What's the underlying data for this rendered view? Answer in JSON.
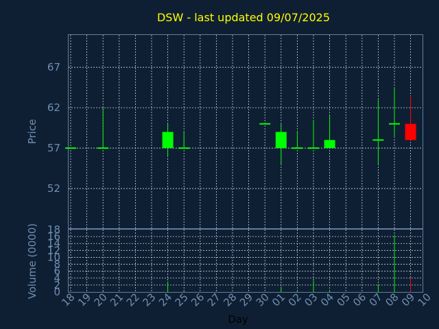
{
  "chart_data": {
    "type": "candlestick",
    "title": "DSW - last updated 09/07/2025",
    "xlabel": "Day",
    "price_panel": {
      "ylabel": "Price",
      "yticks": [
        52,
        57,
        62,
        67
      ],
      "ylim": [
        47,
        71
      ],
      "grid": true
    },
    "volume_panel": {
      "ylabel": "Volume (0000)",
      "yticks": [
        0,
        2,
        4,
        6,
        8,
        10,
        12,
        14,
        16,
        18
      ],
      "ylim": [
        0,
        18
      ],
      "grid": true
    },
    "x_ticks": [
      "18",
      "19",
      "20",
      "21",
      "22",
      "23",
      "24",
      "25",
      "26",
      "27",
      "28",
      "29",
      "30",
      "01",
      "02",
      "03",
      "04",
      "05",
      "06",
      "07",
      "08",
      "09",
      "10"
    ],
    "candles": [
      {
        "day": "18",
        "open": 57.0,
        "high": 57.0,
        "low": 57.0,
        "close": 57.0,
        "volume": 0.0
      },
      {
        "day": "20",
        "open": 57.0,
        "high": 62.0,
        "low": 57.0,
        "close": 57.0,
        "volume": 0.2
      },
      {
        "day": "24",
        "open": 57.0,
        "high": 60.0,
        "low": 56.0,
        "close": 59.0,
        "volume": 3.0
      },
      {
        "day": "25",
        "open": 57.0,
        "high": 59.0,
        "low": 57.0,
        "close": 57.0,
        "volume": 0.3
      },
      {
        "day": "30",
        "open": 60.0,
        "high": 60.0,
        "low": 60.0,
        "close": 60.0,
        "volume": 0.0
      },
      {
        "day": "01",
        "open": 57.0,
        "high": 60.0,
        "low": 55.0,
        "close": 59.0,
        "volume": 1.5
      },
      {
        "day": "02",
        "open": 57.0,
        "high": 59.0,
        "low": 57.0,
        "close": 57.0,
        "volume": 0.3
      },
      {
        "day": "03",
        "open": 57.0,
        "high": 60.5,
        "low": 57.0,
        "close": 57.0,
        "volume": 3.3
      },
      {
        "day": "04",
        "open": 57.0,
        "high": 61.0,
        "low": 57.0,
        "close": 58.0,
        "volume": 0.6
      },
      {
        "day": "07",
        "open": 58.0,
        "high": 63.0,
        "low": 55.0,
        "close": 58.0,
        "volume": 2.2
      },
      {
        "day": "08",
        "open": 60.0,
        "high": 64.5,
        "low": 58.5,
        "close": 60.0,
        "volume": 16.5
      },
      {
        "day": "09",
        "open": 60.0,
        "high": 63.5,
        "low": 58.0,
        "close": 58.0,
        "volume": 4.2
      }
    ],
    "colors": {
      "background": "#0f1f33",
      "up": "#00ff00",
      "down": "#ff0000",
      "title": "#ffff00",
      "axis_text": "#6f8fb0",
      "grid": "#c8d0dc"
    }
  }
}
